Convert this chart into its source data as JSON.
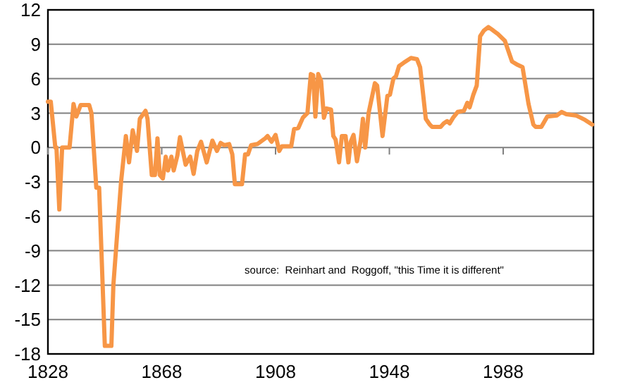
{
  "chart_data": {
    "type": "line",
    "x": [
      1828,
      1829,
      1830.6,
      1831,
      1832,
      1833,
      1835.6,
      1837,
      1838,
      1839.5,
      1842.5,
      1843.3,
      1845,
      1846,
      1848,
      1850.3,
      1851,
      1853.7,
      1855.4,
      1856.5,
      1857.8,
      1859.3,
      1860.3,
      1862.3,
      1863,
      1864.5,
      1865.6,
      1866.5,
      1867.3,
      1868.4,
      1869.4,
      1870.2,
      1871.4,
      1872.2,
      1873.5,
      1874.4,
      1876.4,
      1878,
      1879.2,
      1880.5,
      1881.8,
      1883.8,
      1885.8,
      1887.4,
      1888.7,
      1890,
      1891.7,
      1892.8,
      1893.7,
      1896.2,
      1897.3,
      1898.3,
      1899.4,
      1901.6,
      1904.4,
      1905.2,
      1906.6,
      1908,
      1909.3,
      1910.2,
      1913.5,
      1914.5,
      1916,
      1917.6,
      1919.2,
      1920.4,
      1921.2,
      1922,
      1923,
      1924,
      1925,
      1925.9,
      1927.5,
      1928.3,
      1929.1,
      1930.3,
      1931.3,
      1932.6,
      1933.6,
      1934.4,
      1935.4,
      1936.6,
      1937.9,
      1938.7,
      1939.5,
      1940.7,
      1942.9,
      1943.7,
      1945.6,
      1947.3,
      1948.2,
      1949.4,
      1950.3,
      1951.4,
      1953.1,
      1955.6,
      1957.7,
      1958.8,
      1959.7,
      1960.8,
      1962.2,
      1963,
      1966,
      1967.1,
      1968.3,
      1969.2,
      1970.4,
      1972,
      1974.2,
      1975.4,
      1976.2,
      1977.5,
      1978.7,
      1979.9,
      1981.2,
      1982.8,
      1984.5,
      1986.1,
      1988.6,
      1991.1,
      1993.1,
      1994.8,
      1996.9,
      1998.6,
      1999.4,
      2001.4,
      2003.5,
      2006.9,
      2008.5,
      2010.2,
      2013.5,
      2015.2,
      2016.8,
      2019.3
    ],
    "series": [
      {
        "color": "#f79646",
        "values": [
          4,
          4,
          0,
          0,
          -5.4,
          0,
          0,
          3.8,
          2.7,
          3.7,
          3.7,
          3,
          -3.5,
          -3.5,
          -17.3,
          -17.3,
          -12,
          -3,
          1,
          -1.3,
          1.5,
          -0.3,
          2.5,
          3.2,
          2.5,
          -2.4,
          -2.4,
          0.8,
          -2.4,
          -2.7,
          -0.8,
          -2,
          -0.8,
          -2,
          -0.7,
          0.9,
          -1.5,
          -0.8,
          -2.3,
          -0.3,
          0.5,
          -1.3,
          0.6,
          -0.3,
          0.4,
          0.2,
          0.3,
          -0.6,
          -3.2,
          -3.2,
          -0.6,
          -0.6,
          0.2,
          0.3,
          0.8,
          1,
          0.5,
          1.1,
          -0.3,
          0.1,
          0.1,
          1.6,
          1.7,
          2.6,
          3,
          6.4,
          6.3,
          2.7,
          6.4,
          5.8,
          2.6,
          3.4,
          3.3,
          1,
          0.7,
          -1.3,
          1,
          1,
          -1.3,
          0.5,
          1.1,
          -1.2,
          0.6,
          2.5,
          0,
          3,
          5.6,
          5.4,
          1,
          4.5,
          4.6,
          6,
          6.2,
          7.1,
          7.4,
          7.8,
          7.7,
          7,
          5,
          2.5,
          2,
          1.8,
          1.8,
          2.1,
          2.3,
          2.1,
          2.6,
          3.1,
          3.2,
          3.9,
          3.5,
          4.6,
          5.4,
          9.7,
          10.2,
          10.5,
          10.2,
          9.9,
          9.3,
          7.5,
          7.2,
          7,
          3.8,
          2,
          1.8,
          1.8,
          2.7,
          2.8,
          3.1,
          2.9,
          2.8,
          2.6,
          2.4,
          2
        ]
      }
    ],
    "xlim": [
      1828,
      2019.7
    ],
    "xticks": [
      1828,
      1868,
      1908,
      1948,
      1988
    ],
    "ylim": [
      -18,
      12
    ],
    "yticks": [
      -18,
      -15,
      -12,
      -9,
      -6,
      -3,
      0,
      3,
      6,
      9,
      12
    ],
    "grid": "y",
    "marker": "none",
    "line_style": "solid",
    "annotations": [
      "source:  Reinhart and  Roggoff, \"this Time it is different\""
    ]
  }
}
